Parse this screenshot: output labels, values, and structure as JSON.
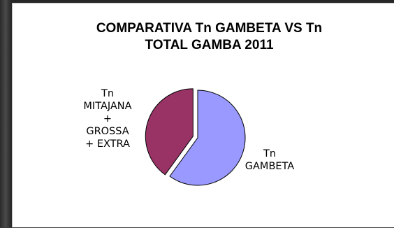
{
  "chart_data": {
    "type": "pie",
    "title_lines": [
      "COMPARATIVA Tn GAMBETA VS Tn",
      "TOTAL GAMBA 2011"
    ],
    "slices": [
      {
        "label_lines": [
          "Tn",
          "GAMBETA"
        ],
        "value": 60,
        "color": "#9999ff",
        "exploded": false
      },
      {
        "label_lines": [
          "Tn",
          "MITAJANA",
          "+",
          "GROSSA",
          "+ EXTRA"
        ],
        "value": 40,
        "color": "#993366",
        "exploded": true
      }
    ],
    "start_angle_deg": 0,
    "direction": "clockwise",
    "legend": "none",
    "data_labels": "category names"
  }
}
